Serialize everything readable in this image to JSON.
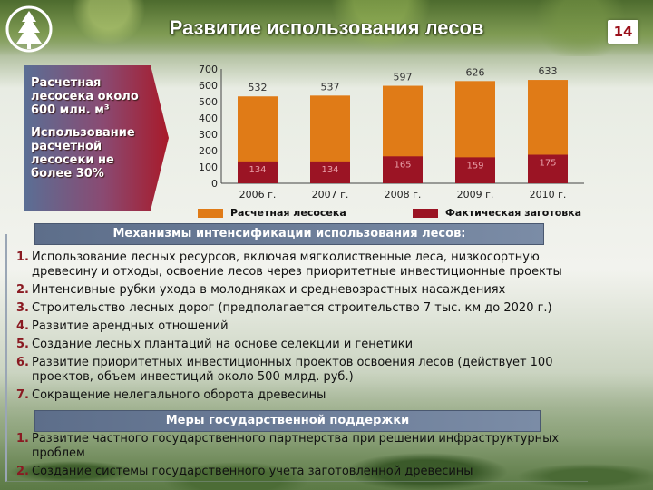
{
  "header": {
    "title": "Развитие использования лесов",
    "page_number": "14",
    "logo_icon": "tree-logo-icon"
  },
  "callout": {
    "line1": "Расчетная лесосека около 600 млн. м³",
    "line2": "Использование расчетной лесосеки не более 30%"
  },
  "chart_data": {
    "type": "bar",
    "categories": [
      "2006 г.",
      "2007 г.",
      "2008 г.",
      "2009 г.",
      "2010 г."
    ],
    "series": [
      {
        "name": "Расчетная лесосека",
        "color": "#e07b17",
        "values": [
          532,
          537,
          597,
          626,
          633
        ]
      },
      {
        "name": "Фактическая заготовка",
        "color": "#9b1424",
        "values": [
          134,
          134,
          165,
          159,
          175
        ]
      }
    ],
    "ylim": [
      0,
      700
    ],
    "yticks": [
      "700",
      "600",
      "500",
      "400",
      "300",
      "200",
      "100",
      "0"
    ],
    "grid": false,
    "legend": "bottom"
  },
  "mechanisms": {
    "heading": "Механизмы интенсификации использования лесов:",
    "items": [
      {
        "num": "1.",
        "text": "Использование лесных ресурсов, включая мягколиственные леса, низкосортную древесину и отходы, освоение лесов через приоритетные инвестиционные проекты"
      },
      {
        "num": "2.",
        "text": "Интенсивные рубки ухода в молодняках и средневозрастных насаждениях"
      },
      {
        "num": "3.",
        "text": "Строительство лесных дорог (предполагается строительство 7 тыс. км до 2020 г.)"
      },
      {
        "num": "4.",
        "text": "Развитие арендных отношений"
      },
      {
        "num": "5.",
        "text": "Создание лесных плантаций на основе селекции и генетики"
      },
      {
        "num": "6.",
        "text": "Развитие приоритетных инвестиционных проектов освоения лесов (действует 100 проектов, объем инвестиций около 500 млрд. руб.)"
      },
      {
        "num": "7.",
        "text": "Сокращение нелегального оборота древесины"
      }
    ]
  },
  "support": {
    "heading": "Меры государственной поддержки",
    "items": [
      {
        "num": "1.",
        "text": "Развитие частного государственного партнерства при решении инфраструктурных проблем"
      },
      {
        "num": "2.",
        "text": "Создание системы государственного учета заготовленной древесины"
      }
    ]
  }
}
